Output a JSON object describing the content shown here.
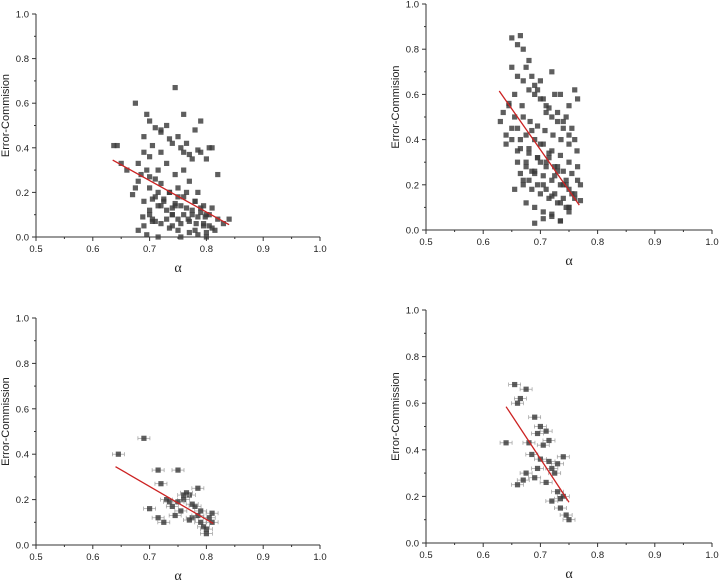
{
  "chart_data": [
    {
      "type": "scatter",
      "position": "top-left",
      "ylabel": "Error-Commision",
      "xlabel": "α",
      "xlim": [
        0.5,
        1.0
      ],
      "ylim": [
        0.0,
        1.0
      ],
      "xticks": [
        "0.5",
        "0.6",
        "0.7",
        "0.8",
        "0.9",
        "1.0"
      ],
      "yticks": [
        "0.0",
        "0.2",
        "0.4",
        "0.6",
        "0.8",
        "1.0"
      ],
      "error_bars": false,
      "fit_line": {
        "x": [
          0.635,
          0.84
        ],
        "y": [
          0.345,
          0.055
        ],
        "color": "#cc2222"
      },
      "series": [
        {
          "x": [
            0.637,
            0.643,
            0.65,
            0.66,
            0.67,
            0.675,
            0.68,
            0.685,
            0.69,
            0.695,
            0.7,
            0.705,
            0.71,
            0.715,
            0.72,
            0.725,
            0.73,
            0.735,
            0.74,
            0.745,
            0.75,
            0.755,
            0.76,
            0.765,
            0.77,
            0.775,
            0.78,
            0.785,
            0.79,
            0.795,
            0.8,
            0.805,
            0.81,
            0.815,
            0.82,
            0.83,
            0.84,
            0.688,
            0.705,
            0.72,
            0.74,
            0.755,
            0.768,
            0.782,
            0.798,
            0.81,
            0.7,
            0.715,
            0.73,
            0.745,
            0.76,
            0.775,
            0.79,
            0.805,
            0.69,
            0.71,
            0.725,
            0.74,
            0.75,
            0.765,
            0.78,
            0.795,
            0.7,
            0.72,
            0.735,
            0.75,
            0.77,
            0.785,
            0.68,
            0.7,
            0.715,
            0.73,
            0.745,
            0.76,
            0.775,
            0.79,
            0.805,
            0.82,
            0.69,
            0.705,
            0.72,
            0.74,
            0.755,
            0.77,
            0.785,
            0.8,
            0.695,
            0.71,
            0.73,
            0.75,
            0.765,
            0.78,
            0.675,
            0.7,
            0.72,
            0.735,
            0.76,
            0.79,
            0.81,
            0.69,
            0.74,
            0.755,
            0.78,
            0.8,
            0.715,
            0.77,
            0.795,
            0.72,
            0.76,
            0.705,
            0.745,
            0.7,
            0.68,
            0.695,
            0.71,
            0.735,
            0.75,
            0.785,
            0.8
          ],
          "y": [
            0.41,
            0.41,
            0.33,
            0.3,
            0.19,
            0.22,
            0.33,
            0.28,
            0.38,
            0.3,
            0.36,
            0.17,
            0.26,
            0.2,
            0.14,
            0.17,
            0.08,
            0.2,
            0.1,
            0.14,
            0.08,
            0.14,
            0.18,
            0.13,
            0.07,
            0.1,
            0.16,
            0.09,
            0.13,
            0.06,
            0.1,
            0.05,
            0.13,
            0.03,
            0.08,
            0.06,
            0.08,
            0.09,
            0.07,
            0.06,
            0.1,
            0.06,
            0.08,
            0.06,
            0.09,
            0.04,
            0.12,
            0.14,
            0.12,
            0.15,
            0.1,
            0.12,
            0.11,
            0.1,
            0.16,
            0.18,
            0.16,
            0.13,
            0.18,
            0.2,
            0.16,
            0.14,
            0.22,
            0.24,
            0.2,
            0.22,
            0.25,
            0.2,
            0.25,
            0.27,
            0.3,
            0.33,
            0.28,
            0.3,
            0.35,
            0.38,
            0.4,
            0.28,
            0.45,
            0.41,
            0.38,
            0.42,
            0.4,
            0.37,
            0.39,
            0.35,
            0.55,
            0.49,
            0.5,
            0.45,
            0.42,
            0.48,
            0.6,
            0.52,
            0.47,
            0.44,
            0.38,
            0.52,
            0.4,
            0.05,
            0.05,
            0.0,
            0.03,
            0.02,
            0.0,
            0.02,
            0.05,
            0.48,
            0.55,
            0.08,
            0.67,
            0.1,
            0.03,
            0.01,
            0.07,
            0.04,
            0.03,
            0.01,
            0.0
          ]
        }
      ]
    },
    {
      "type": "scatter",
      "position": "top-right",
      "ylabel": "Error-Commision",
      "xlabel": "α",
      "xlim": [
        0.5,
        1.0
      ],
      "ylim": [
        0.0,
        1.0
      ],
      "xticks": [
        "0.5",
        "0.6",
        "0.7",
        "0.8",
        "0.9",
        "1.0"
      ],
      "yticks": [
        "0.0",
        "0.2",
        "0.4",
        "0.6",
        "0.8",
        "1.0"
      ],
      "error_bars": false,
      "fit_line": {
        "x": [
          0.628,
          0.768
        ],
        "y": [
          0.615,
          0.11
        ],
        "color": "#cc2222"
      },
      "series": [
        {
          "x": [
            0.63,
            0.635,
            0.64,
            0.645,
            0.65,
            0.655,
            0.66,
            0.665,
            0.67,
            0.675,
            0.68,
            0.685,
            0.69,
            0.695,
            0.7,
            0.705,
            0.71,
            0.715,
            0.72,
            0.725,
            0.73,
            0.735,
            0.74,
            0.745,
            0.75,
            0.755,
            0.76,
            0.765,
            0.77,
            0.65,
            0.66,
            0.67,
            0.68,
            0.69,
            0.7,
            0.71,
            0.72,
            0.73,
            0.74,
            0.75,
            0.76,
            0.64,
            0.655,
            0.668,
            0.682,
            0.695,
            0.708,
            0.722,
            0.736,
            0.75,
            0.764,
            0.645,
            0.66,
            0.675,
            0.69,
            0.705,
            0.72,
            0.735,
            0.75,
            0.765,
            0.65,
            0.665,
            0.68,
            0.695,
            0.71,
            0.725,
            0.74,
            0.755,
            0.66,
            0.675,
            0.69,
            0.705,
            0.72,
            0.735,
            0.75,
            0.665,
            0.68,
            0.695,
            0.71,
            0.725,
            0.74,
            0.67,
            0.685,
            0.7,
            0.715,
            0.73,
            0.745,
            0.76,
            0.655,
            0.67,
            0.685,
            0.7,
            0.715,
            0.73,
            0.745,
            0.66,
            0.675,
            0.69,
            0.705,
            0.72,
            0.735,
            0.75,
            0.765,
            0.65,
            0.665,
            0.68,
            0.695,
            0.71,
            0.725,
            0.74,
            0.755,
            0.67,
            0.685,
            0.7,
            0.715,
            0.73,
            0.745,
            0.76,
            0.675,
            0.69,
            0.705,
            0.72,
            0.735,
            0.75,
            0.69,
            0.705,
            0.72,
            0.735,
            0.75,
            0.77
          ],
          "y": [
            0.48,
            0.52,
            0.42,
            0.56,
            0.85,
            0.6,
            0.82,
            0.86,
            0.8,
            0.72,
            0.75,
            0.68,
            0.64,
            0.62,
            0.66,
            0.58,
            0.55,
            0.54,
            0.7,
            0.6,
            0.52,
            0.6,
            0.48,
            0.5,
            0.55,
            0.45,
            0.62,
            0.58,
            0.2,
            0.72,
            0.68,
            0.66,
            0.62,
            0.6,
            0.58,
            0.52,
            0.5,
            0.48,
            0.45,
            0.42,
            0.4,
            0.38,
            0.5,
            0.55,
            0.48,
            0.46,
            0.44,
            0.42,
            0.4,
            0.38,
            0.35,
            0.55,
            0.45,
            0.42,
            0.4,
            0.38,
            0.35,
            0.33,
            0.3,
            0.28,
            0.4,
            0.36,
            0.34,
            0.32,
            0.3,
            0.28,
            0.26,
            0.25,
            0.3,
            0.28,
            0.26,
            0.24,
            0.22,
            0.2,
            0.18,
            0.25,
            0.22,
            0.2,
            0.18,
            0.16,
            0.14,
            0.2,
            0.18,
            0.16,
            0.14,
            0.12,
            0.1,
            0.16,
            0.18,
            0.22,
            0.26,
            0.3,
            0.34,
            0.28,
            0.22,
            0.35,
            0.3,
            0.25,
            0.2,
            0.15,
            0.12,
            0.1,
            0.22,
            0.45,
            0.4,
            0.36,
            0.32,
            0.28,
            0.24,
            0.2,
            0.16,
            0.5,
            0.44,
            0.38,
            0.32,
            0.26,
            0.2,
            0.14,
            0.12,
            0.1,
            0.08,
            0.06,
            0.04,
            0.1,
            0.03,
            0.05,
            0.07,
            0.04,
            0.08,
            0.13
          ]
        }
      ]
    },
    {
      "type": "scatter",
      "position": "bottom-left",
      "ylabel": "Error-Commission",
      "xlabel": "α",
      "xlim": [
        0.5,
        1.0
      ],
      "ylim": [
        0.0,
        1.0
      ],
      "xticks": [
        "0.5",
        "0.6",
        "0.7",
        "0.8",
        "0.9",
        "1.0"
      ],
      "yticks": [
        "0.0",
        "0.2",
        "0.4",
        "0.6",
        "0.8",
        "1.0"
      ],
      "error_bars": true,
      "fit_line": {
        "x": [
          0.64,
          0.812
        ],
        "y": [
          0.345,
          0.095
        ],
        "color": "#cc2222"
      },
      "series": [
        {
          "x": [
            0.645,
            0.69,
            0.715,
            0.72,
            0.73,
            0.74,
            0.75,
            0.755,
            0.76,
            0.765,
            0.77,
            0.775,
            0.78,
            0.785,
            0.79,
            0.795,
            0.8,
            0.81,
            0.81,
            0.7,
            0.715,
            0.735,
            0.745,
            0.76,
            0.775,
            0.79,
            0.805,
            0.725,
            0.75,
            0.77,
            0.785,
            0.8
          ],
          "y": [
            0.4,
            0.47,
            0.33,
            0.27,
            0.2,
            0.17,
            0.33,
            0.15,
            0.2,
            0.23,
            0.22,
            0.12,
            0.17,
            0.25,
            0.1,
            0.08,
            0.07,
            0.14,
            0.1,
            0.16,
            0.12,
            0.19,
            0.13,
            0.22,
            0.18,
            0.15,
            0.12,
            0.1,
            0.19,
            0.11,
            0.13,
            0.05
          ]
        }
      ]
    },
    {
      "type": "scatter",
      "position": "bottom-right",
      "ylabel": "Error-Commission",
      "xlabel": "α",
      "xlim": [
        0.5,
        1.0
      ],
      "ylim": [
        0.0,
        1.0
      ],
      "xticks": [
        "0.5",
        "0.6",
        "0.7",
        "0.8",
        "0.9",
        "1.0"
      ],
      "yticks": [
        "0.0",
        "0.2",
        "0.4",
        "0.6",
        "0.8",
        "1.0"
      ],
      "error_bars": true,
      "fit_line": {
        "x": [
          0.64,
          0.75
        ],
        "y": [
          0.585,
          0.175
        ],
        "color": "#cc2222"
      },
      "series": [
        {
          "x": [
            0.64,
            0.655,
            0.66,
            0.665,
            0.67,
            0.675,
            0.68,
            0.685,
            0.69,
            0.695,
            0.7,
            0.705,
            0.71,
            0.715,
            0.72,
            0.725,
            0.73,
            0.735,
            0.74,
            0.745,
            0.75,
            0.66,
            0.675,
            0.69,
            0.7,
            0.71,
            0.72,
            0.73,
            0.74,
            0.695,
            0.715,
            0.735
          ],
          "y": [
            0.43,
            0.68,
            0.6,
            0.62,
            0.27,
            0.66,
            0.43,
            0.38,
            0.54,
            0.32,
            0.36,
            0.42,
            0.48,
            0.44,
            0.32,
            0.3,
            0.34,
            0.15,
            0.2,
            0.12,
            0.1,
            0.25,
            0.3,
            0.28,
            0.5,
            0.26,
            0.18,
            0.22,
            0.37,
            0.47,
            0.35,
            0.19
          ]
        }
      ]
    }
  ]
}
